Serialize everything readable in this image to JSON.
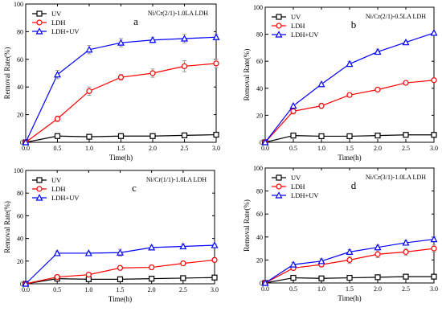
{
  "chart_data": [
    {
      "type": "line",
      "letter": "a",
      "title": "Ni/Cr(2/1)-1.0LA LDH",
      "xlabel": "Time(h)",
      "ylabel": "Removal Rate(%)",
      "xlim": [
        0,
        3.0
      ],
      "ylim": [
        0,
        100
      ],
      "xticks": [
        "0.0",
        "0.5",
        "1.0",
        "1.5",
        "2.0",
        "2.5",
        "3.0"
      ],
      "yticks": [
        "0",
        "20",
        "40",
        "60",
        "80",
        "100"
      ],
      "x": [
        0,
        0.5,
        1.0,
        1.5,
        2.0,
        2.5,
        3.0
      ],
      "legend_position": "top-left",
      "series": [
        {
          "name": "UV",
          "color": "#000000",
          "marker": "square",
          "values": [
            0,
            4.5,
            4,
            4.5,
            4.5,
            5,
            5.5
          ],
          "errors": [
            0,
            1,
            1,
            1,
            1,
            1,
            1
          ]
        },
        {
          "name": "LDH",
          "color": "#ff0000",
          "marker": "circle",
          "values": [
            0,
            17,
            37,
            47,
            50,
            55,
            57
          ],
          "errors": [
            0,
            2,
            3,
            2,
            3,
            4,
            3
          ]
        },
        {
          "name": "LDH+UV",
          "color": "#0000ff",
          "marker": "triangle",
          "values": [
            0,
            49,
            67,
            72,
            74,
            75,
            76
          ],
          "errors": [
            0,
            3,
            3,
            3,
            2,
            3,
            2
          ]
        }
      ]
    },
    {
      "type": "line",
      "letter": "b",
      "title": "Ni/Cr(2/1)-0.5LA LDH",
      "xlabel": "Time(h)",
      "ylabel": "Removal Rate(%)",
      "xlim": [
        0,
        3.0
      ],
      "ylim": [
        0,
        100
      ],
      "xticks": [
        "0.0",
        "0.5",
        "1.0",
        "1.5",
        "2.0",
        "2.5",
        "3.0"
      ],
      "yticks": [
        "0",
        "20",
        "40",
        "60",
        "80",
        "100"
      ],
      "x": [
        0,
        0.5,
        1.0,
        1.5,
        2.0,
        2.5,
        3.0
      ],
      "legend_position": "top-left",
      "series": [
        {
          "name": "UV",
          "color": "#000000",
          "marker": "square",
          "values": [
            0,
            5,
            4.5,
            4.5,
            5,
            5.5,
            5.5
          ],
          "errors": [
            0,
            2,
            1,
            1,
            1,
            1,
            1
          ]
        },
        {
          "name": "LDH",
          "color": "#ff0000",
          "marker": "circle",
          "values": [
            0,
            23,
            27,
            35,
            39,
            44,
            46
          ],
          "errors": [
            0,
            2,
            2,
            1,
            1,
            1,
            1
          ]
        },
        {
          "name": "LDH+UV",
          "color": "#0000ff",
          "marker": "triangle",
          "values": [
            0,
            27,
            43,
            58,
            67,
            74,
            81
          ],
          "errors": [
            0,
            1,
            1,
            2,
            2,
            1,
            1
          ]
        }
      ]
    },
    {
      "type": "line",
      "letter": "c",
      "title": "Ni/Cr(1/1)-1.0LA LDH",
      "xlabel": "Time(h)",
      "ylabel": "Removal Rate(%)",
      "xlim": [
        0,
        3.0
      ],
      "ylim": [
        0,
        100
      ],
      "xticks": [
        "0.0",
        "0.5",
        "1.0",
        "1.5",
        "2.0",
        "2.5",
        "3.0"
      ],
      "yticks": [
        "0",
        "20",
        "40",
        "60",
        "80",
        "100"
      ],
      "x": [
        0,
        0.5,
        1.0,
        1.5,
        2.0,
        2.5,
        3.0
      ],
      "legend_position": "top-left",
      "series": [
        {
          "name": "UV",
          "color": "#000000",
          "marker": "square",
          "values": [
            0,
            4.5,
            4,
            4,
            4.5,
            5,
            5.5
          ],
          "errors": [
            0,
            1,
            1,
            1,
            1,
            1,
            1
          ]
        },
        {
          "name": "LDH",
          "color": "#ff0000",
          "marker": "circle",
          "values": [
            0,
            6,
            8,
            14,
            14.5,
            18,
            21
          ],
          "errors": [
            0,
            2,
            2,
            2,
            2,
            2,
            2
          ]
        },
        {
          "name": "LDH+UV",
          "color": "#0000ff",
          "marker": "triangle",
          "values": [
            0,
            27,
            27,
            27.5,
            32,
            33,
            34
          ],
          "errors": [
            0,
            2,
            1,
            3,
            2,
            2,
            1
          ]
        }
      ]
    },
    {
      "type": "line",
      "letter": "d",
      "title": "Ni/Cr(3/1)-1.0LA LDH",
      "xlabel": "Time(h)",
      "ylabel": "Removal Rate(%)",
      "xlim": [
        0,
        3.0
      ],
      "ylim": [
        0,
        100
      ],
      "xticks": [
        "0.0",
        "0.5",
        "1.0",
        "1.5",
        "2.0",
        "2.5",
        "3.0"
      ],
      "yticks": [
        "0",
        "20",
        "40",
        "60",
        "80",
        "100"
      ],
      "x": [
        0,
        0.5,
        1.0,
        1.5,
        2.0,
        2.5,
        3.0
      ],
      "legend_position": "top-left",
      "series": [
        {
          "name": "UV",
          "color": "#000000",
          "marker": "square",
          "values": [
            0,
            4.5,
            4,
            4.5,
            5,
            5.5,
            5.5
          ],
          "errors": [
            0,
            1,
            1,
            1,
            1,
            1,
            1
          ]
        },
        {
          "name": "LDH",
          "color": "#ff0000",
          "marker": "circle",
          "values": [
            0,
            13,
            16,
            20,
            25,
            27,
            30
          ],
          "errors": [
            0,
            2,
            2,
            3,
            3,
            3,
            3
          ]
        },
        {
          "name": "LDH+UV",
          "color": "#0000ff",
          "marker": "triangle",
          "values": [
            0,
            16,
            19,
            27,
            31,
            35,
            38
          ],
          "errors": [
            0,
            2,
            2,
            2,
            2,
            2,
            2
          ]
        }
      ]
    }
  ]
}
